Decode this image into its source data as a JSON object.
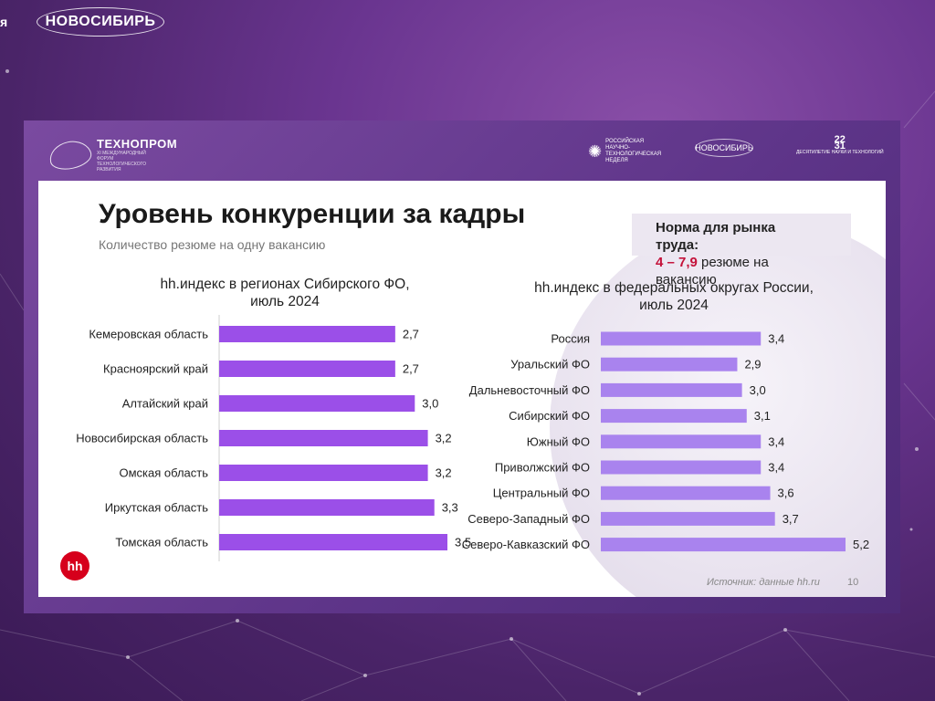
{
  "screen": {
    "edge_text": "я",
    "top_logo": "НОВОСИБИРЬ"
  },
  "header": {
    "technoprom_name": "ТЕХНОПРОМ",
    "technoprom_sub": "XI МЕЖДУНАРОДНЫЙ ФОРУМ ТЕХНОЛОГИЧЕСКОГО РАЗВИТИЯ",
    "logo1_text": "РОССИЙСКАЯ НАУЧНО-ТЕХНОЛОГИЧЕСКАЯ НЕДЕЛЯ",
    "logo2_text": "НОВОСИБИРЬ",
    "logo3_top": "22",
    "logo3_mid": "31",
    "logo3_sub": "ДЕСЯТИЛЕТИЕ НАУКИ И ТЕХНОЛОГИЙ"
  },
  "slide": {
    "title": "Уровень конкуренции за кадры",
    "subtitle": "Количество резюме на одну вакансию",
    "norm_line1": "Норма для рынка",
    "norm_line2": "труда:",
    "norm_range": "4 – 7,9",
    "norm_suffix": " резюме на",
    "norm_line4": "вакансию",
    "hh_logo": "hh",
    "source": "Источник: данные hh.ru",
    "page_number": "10"
  },
  "colors": {
    "bar_left": "#9b4fe8",
    "bar_right": "#a983ee",
    "accent_red": "#c4123a"
  },
  "chart_data": [
    {
      "type": "bar",
      "orientation": "horizontal",
      "title": "hh.индекс в регионах Сибирского ФО,\nиюль 2024",
      "title_line1": "hh.индекс в регионах Сибирского ФО,",
      "title_line2": "июль 2024",
      "categories": [
        "Кемеровская область",
        "Красноярский край",
        "Алтайский край",
        "Новосибирская область",
        "Омская область",
        "Иркутская область",
        "Томская область"
      ],
      "values": [
        2.7,
        2.7,
        3.0,
        3.2,
        3.2,
        3.3,
        3.5
      ],
      "value_labels": [
        "2,7",
        "2,7",
        "3,0",
        "3,2",
        "3,2",
        "3,3",
        "3,5"
      ],
      "xlim": [
        0,
        3.5
      ],
      "grid": false,
      "legend": "none"
    },
    {
      "type": "bar",
      "orientation": "horizontal",
      "title": "hh.индекс в федеральных округах России,\nиюль 2024",
      "title_line1": "hh.индекс в федеральных округах России,",
      "title_line2": "июль 2024",
      "categories": [
        "Россия",
        "Уральский ФО",
        "Дальневосточный ФО",
        "Сибирский ФО",
        "Южный ФО",
        "Приволжский ФО",
        "Центральный ФО",
        "Северо-Западный ФО",
        "Северо-Кавказский ФО"
      ],
      "values": [
        3.4,
        2.9,
        3.0,
        3.1,
        3.4,
        3.4,
        3.6,
        3.7,
        5.2
      ],
      "value_labels": [
        "3,4",
        "2,9",
        "3,0",
        "3,1",
        "3,4",
        "3,4",
        "3,6",
        "3,7",
        "5,2"
      ],
      "xlim": [
        0,
        5.2
      ],
      "grid": false,
      "legend": "none"
    }
  ]
}
